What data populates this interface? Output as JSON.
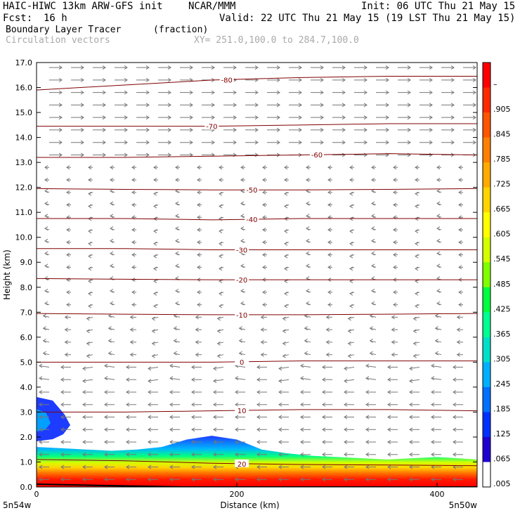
{
  "header": {
    "model": "HAIC-HIWC 13km ARW-GFS init",
    "org": "NCAR/MMM",
    "init": "Init: 06 UTC Thu 21 May 15",
    "fcst_label": "Fcst:",
    "fcst_value": "16 h",
    "valid": "Valid: 22 UTC Thu 21 May 15 (19 LST Thu 21 May 15)",
    "field": "Boundary Layer Tracer",
    "units": "(fraction)",
    "vectors": "Circulation vectors",
    "xy": "XY= 251.0,100.0 to 284.7,100.0"
  },
  "chart_data": {
    "type": "cross-section",
    "xlabel": "Distance (km)",
    "ylabel": "Height (km)",
    "xlim": [
      0,
      440
    ],
    "ylim": [
      0,
      17
    ],
    "x_ticks": [
      {
        "v": 0,
        "label": "0"
      },
      {
        "v": 200,
        "label": "200"
      },
      {
        "v": 400,
        "label": "400"
      }
    ],
    "x_end_labels": [
      "5n54w",
      "5n50w"
    ],
    "y_ticks": [
      "0.0",
      "1.0",
      "2.0",
      "3.0",
      "4.0",
      "5.0",
      "6.0",
      "7.0",
      "8.0",
      "9.0",
      "10.0",
      "11.0",
      "12.0",
      "13.0",
      "14.0",
      "15.0",
      "16.0",
      "17.0"
    ],
    "colorbar": {
      "labels": [
        "–",
        ".905",
        ".845",
        ".785",
        ".725",
        ".665",
        ".605",
        ".545",
        ".485",
        ".425",
        ".365",
        ".305",
        ".245",
        ".185",
        ".125",
        ".065",
        ".005"
      ],
      "colors": [
        "#ff0000",
        "#ff2a00",
        "#ff5500",
        "#ff8000",
        "#ffaa00",
        "#ffd400",
        "#ffff00",
        "#d4ff00",
        "#80ff00",
        "#00ff40",
        "#00ff90",
        "#00e0c8",
        "#00b0ff",
        "#0070ff",
        "#0030ff",
        "#2000d0",
        "#ffffff"
      ]
    },
    "temperature_contours": [
      {
        "label": "20",
        "x": 205,
        "h": [
          1.1,
          1.05,
          0.95,
          0.9,
          0.88,
          0.85
        ]
      },
      {
        "label": "10",
        "x": 205,
        "h": [
          3.0,
          3.0,
          3.05,
          3.1,
          3.1,
          3.05
        ]
      },
      {
        "label": "0",
        "x": 205,
        "h": [
          5.0,
          5.0,
          5.0,
          5.05,
          5.05,
          5.05
        ]
      },
      {
        "label": "-10",
        "x": 205,
        "h": [
          6.95,
          6.92,
          6.9,
          6.9,
          6.92,
          6.95
        ]
      },
      {
        "label": "-20",
        "x": 205,
        "h": [
          8.35,
          8.32,
          8.3,
          8.3,
          8.3,
          8.3
        ]
      },
      {
        "label": "-30",
        "x": 205,
        "h": [
          9.55,
          9.55,
          9.5,
          9.5,
          9.5,
          9.5
        ]
      },
      {
        "label": "-40",
        "x": 215,
        "h": [
          10.75,
          10.75,
          10.7,
          10.75,
          10.75,
          10.75
        ]
      },
      {
        "label": "-50",
        "x": 215,
        "h": [
          11.95,
          11.92,
          11.9,
          11.9,
          11.92,
          11.95
        ]
      },
      {
        "label": "-60",
        "x": 280,
        "h": [
          13.2,
          13.2,
          13.25,
          13.3,
          13.35,
          13.3
        ]
      },
      {
        "label": "-70",
        "x": 175,
        "h": [
          14.45,
          14.45,
          14.45,
          14.5,
          14.55,
          14.55
        ]
      },
      {
        "label": "-80",
        "x": 190,
        "h": [
          15.9,
          16.1,
          16.3,
          16.4,
          16.45,
          16.45
        ]
      }
    ],
    "boundary_layer_top_km": [
      1.6,
      1.55,
      1.5,
      1.45,
      1.5,
      1.6,
      1.9,
      2.05,
      1.9,
      1.5,
      1.35,
      1.25,
      1.2,
      1.15,
      1.1,
      1.15,
      1.2,
      1.1
    ],
    "x_samples": [
      0,
      25,
      50,
      75,
      100,
      125,
      150,
      175,
      200,
      225,
      250,
      275,
      300,
      325,
      350,
      375,
      400,
      440
    ]
  }
}
